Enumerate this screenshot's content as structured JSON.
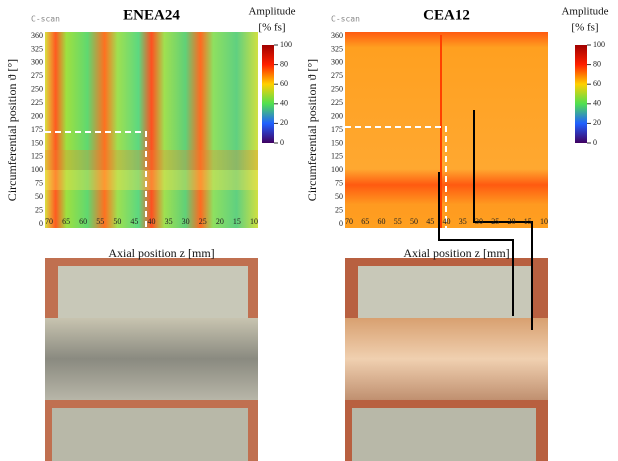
{
  "panels": [
    {
      "scan_label": "C-scan",
      "title": "ENEA24",
      "colorbar_title": "Amplitude",
      "colorbar_unit": "[% fs]",
      "colorbar_ticks": [
        100,
        80,
        60,
        40,
        20,
        0
      ],
      "y_axis_label": "Circumferential position ϑ [°]",
      "y_ticks": [
        360,
        325,
        300,
        275,
        250,
        225,
        200,
        175,
        150,
        125,
        100,
        75,
        50,
        25,
        0
      ],
      "x_ticks": [
        70,
        65,
        60,
        55,
        50,
        45,
        40,
        35,
        30,
        25,
        20,
        15,
        10
      ],
      "x_axis_label": "Axial position z [mm]"
    },
    {
      "scan_label": "C-scan",
      "title": "CEA12",
      "colorbar_title": "Amplitude",
      "colorbar_unit": "[% fs]",
      "colorbar_ticks": [
        100,
        80,
        60,
        40,
        20,
        0
      ],
      "y_axis_label": "Circumferential position ϑ [°]",
      "y_ticks": [
        360,
        325,
        300,
        275,
        250,
        225,
        200,
        175,
        150,
        125,
        100,
        75,
        50,
        25,
        0
      ],
      "x_ticks": [
        70,
        65,
        60,
        55,
        50,
        45,
        40,
        35,
        30,
        25,
        20,
        15,
        10
      ],
      "x_axis_label": "Axial position z [mm]"
    }
  ]
}
